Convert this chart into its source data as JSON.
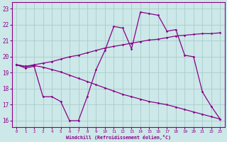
{
  "xlabel": "Windchill (Refroidissement éolien,°C)",
  "bg_color": "#cce8e8",
  "line_color": "#880088",
  "grid_color": "#aacccc",
  "x": [
    0,
    1,
    2,
    3,
    4,
    5,
    6,
    7,
    8,
    9,
    10,
    11,
    12,
    13,
    14,
    15,
    16,
    17,
    18,
    19,
    20,
    21,
    22,
    23
  ],
  "y_smooth_upper": [
    19.5,
    19.4,
    19.5,
    19.6,
    19.7,
    19.85,
    20.0,
    20.1,
    20.25,
    20.4,
    20.55,
    20.65,
    20.75,
    20.85,
    20.95,
    21.05,
    21.1,
    21.2,
    21.3,
    21.35,
    21.4,
    21.45,
    21.45,
    21.5
  ],
  "y_smooth_lower": [
    19.5,
    19.4,
    19.45,
    19.35,
    19.2,
    19.05,
    18.85,
    18.65,
    18.45,
    18.25,
    18.05,
    17.85,
    17.65,
    17.5,
    17.35,
    17.2,
    17.1,
    17.0,
    16.85,
    16.7,
    16.55,
    16.4,
    16.25,
    16.1
  ],
  "y_jagged": [
    19.5,
    19.3,
    19.4,
    17.5,
    17.5,
    17.2,
    16.0,
    16.0,
    17.5,
    19.2,
    20.4,
    21.9,
    21.8,
    20.5,
    22.8,
    22.7,
    22.6,
    21.6,
    21.7,
    20.1,
    20.0,
    17.8,
    16.9,
    16.1
  ],
  "ylim": [
    15.6,
    23.4
  ],
  "yticks": [
    16,
    17,
    18,
    19,
    20,
    21,
    22,
    23
  ],
  "xlim": [
    -0.5,
    23.5
  ],
  "xticks": [
    0,
    1,
    2,
    3,
    4,
    5,
    6,
    7,
    8,
    9,
    10,
    11,
    12,
    13,
    14,
    15,
    16,
    17,
    18,
    19,
    20,
    21,
    22,
    23
  ]
}
